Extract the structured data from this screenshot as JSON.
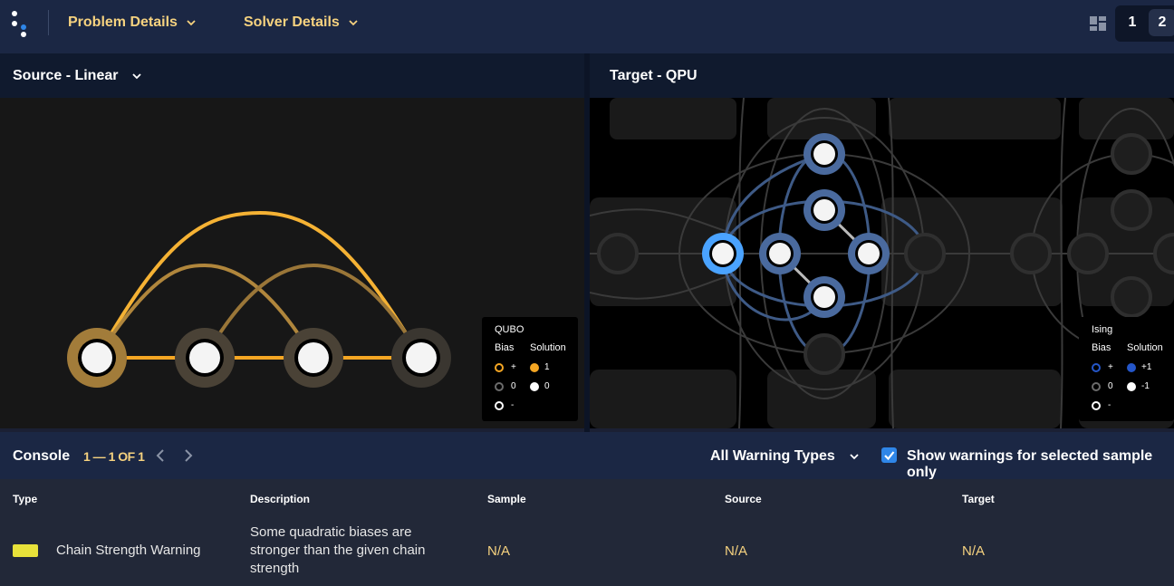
{
  "topbar": {
    "menus": [
      {
        "label": "Problem Details"
      },
      {
        "label": "Solver Details"
      }
    ],
    "pages": [
      "1",
      "2"
    ]
  },
  "source_pane": {
    "title": "Source - Linear",
    "legend": {
      "title": "QUBO",
      "col_bias": "Bias",
      "col_solution": "Solution",
      "bias_rows": [
        "+",
        "0",
        "-"
      ],
      "solution_rows": [
        "1",
        "0"
      ],
      "colors": {
        "positive": "#f5a623",
        "zero": "#6b6b6b",
        "negative": "#ffffff"
      }
    },
    "colors": {
      "edge": "#f5a623",
      "node_ring_strong": "#9b7a3c",
      "node_ring_weak": "#4a4236"
    }
  },
  "target_pane": {
    "title": "Target - QPU",
    "legend": {
      "title": "Ising",
      "col_bias": "Bias",
      "col_solution": "Solution",
      "bias_rows": [
        "+",
        "0",
        "-"
      ],
      "solution_rows": [
        "+1",
        "-1"
      ],
      "colors": {
        "positive": "#2456c9",
        "zero": "#6b6b6b",
        "negative": "#ffffff"
      }
    },
    "colors": {
      "active_ring": "#4a6a9e",
      "selected_ring": "#4aa3ff",
      "inactive_ring": "#2a2a2a"
    }
  },
  "console": {
    "title": "Console",
    "count": "1 — 1 OF 1",
    "filter": "All Warning Types",
    "checkbox_label": "Show warnings for selected sample only",
    "checkbox_checked": true,
    "columns": [
      "Type",
      "Description",
      "Sample",
      "Source",
      "Target"
    ],
    "rows": [
      {
        "type": "Chain Strength Warning",
        "type_color": "#e8e23a",
        "description_lines": [
          "Some quadratic biases are",
          "stronger than the given chain",
          "strength"
        ],
        "sample": "N/A",
        "source": "N/A",
        "target": "N/A"
      }
    ]
  },
  "icons": [
    "logo-icon",
    "chevron-down-icon",
    "layout-icon",
    "chevron-left-icon",
    "chevron-right-icon",
    "check-icon"
  ]
}
